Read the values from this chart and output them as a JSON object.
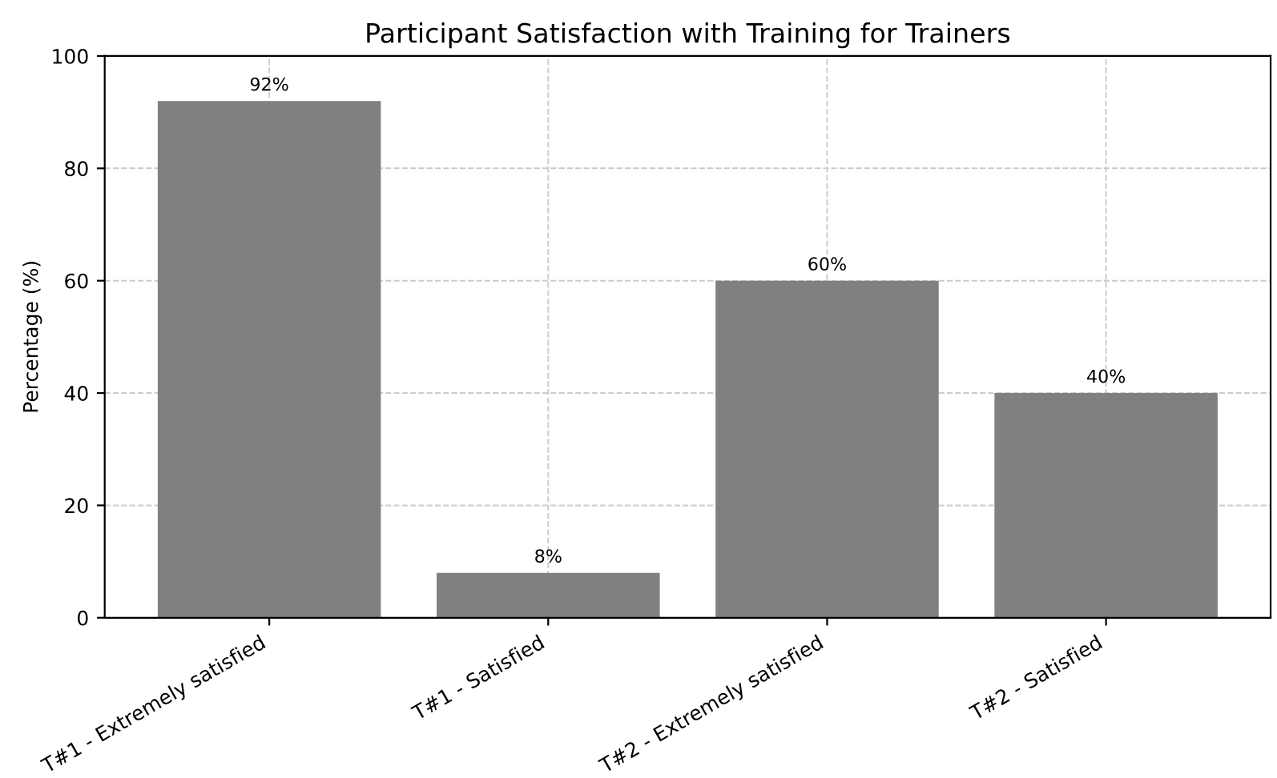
{
  "chart_data": {
    "type": "bar",
    "title": "Participant Satisfaction with Training for Trainers",
    "ylabel": "Percentage (%)",
    "categories": [
      "T#1 - Extremely satisfied",
      "T#1 - Satisfied",
      "T#2 - Extremely satisfied",
      "T#2 - Satisfied"
    ],
    "values": [
      92,
      8,
      60,
      40
    ],
    "color": "#808080",
    "value_labels": [
      "92%",
      "8%",
      "60%",
      "40%"
    ],
    "ylim": [
      0,
      100
    ],
    "yticks": [
      0,
      20,
      40,
      60,
      80,
      100
    ],
    "grid": true
  }
}
